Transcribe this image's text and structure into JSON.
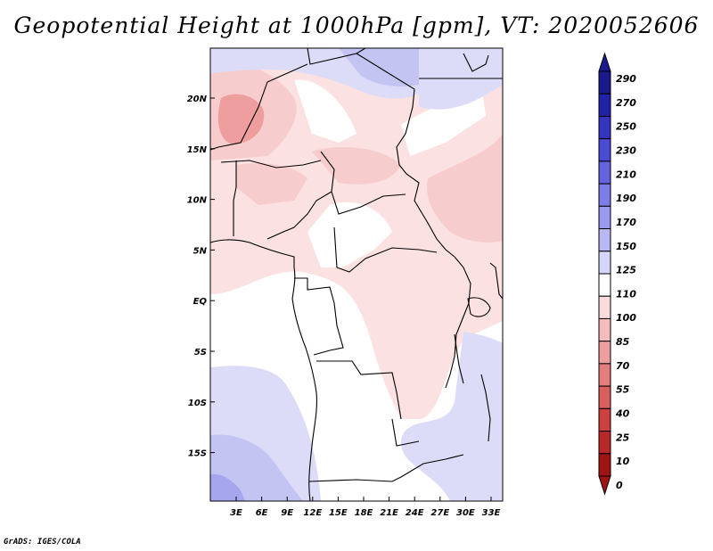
{
  "title": "Geopotential Height at 1000hPa [gpm], VT: 2020052606",
  "credit": "GrADS: IGES/COLA",
  "map": {
    "lon_labels": [
      "3E",
      "6E",
      "9E",
      "12E",
      "15E",
      "18E",
      "21E",
      "24E",
      "27E",
      "30E",
      "33E"
    ],
    "lat_labels": [
      "20N",
      "15N",
      "10N",
      "5N",
      "EQ",
      "5S",
      "10S",
      "15S"
    ]
  },
  "colorbar": {
    "labels": [
      "290",
      "270",
      "250",
      "230",
      "210",
      "190",
      "170",
      "150",
      "125",
      "110",
      "100",
      "85",
      "70",
      "55",
      "40",
      "25",
      "10",
      "0"
    ],
    "colors": [
      "#1a1a8c",
      "#2222a8",
      "#3434c0",
      "#4a4ad4",
      "#6464e0",
      "#7d7de8",
      "#9a9af0",
      "#b8b8f5",
      "#d6d6fa",
      "#ffffff",
      "#fbdcdc",
      "#f5bcbc",
      "#ee9e9e",
      "#e47e7e",
      "#d95e5e",
      "#cc4040",
      "#b82828",
      "#a01414"
    ]
  },
  "colors": {
    "pink_light": "#fbe1e1",
    "pink_mid": "#f7cccc",
    "pink_strong": "#ee9e9e",
    "blue_light": "#dcdcf8",
    "blue_mid": "#c4c4f2",
    "blue_strong": "#a6a6ee",
    "border": "#000000"
  }
}
